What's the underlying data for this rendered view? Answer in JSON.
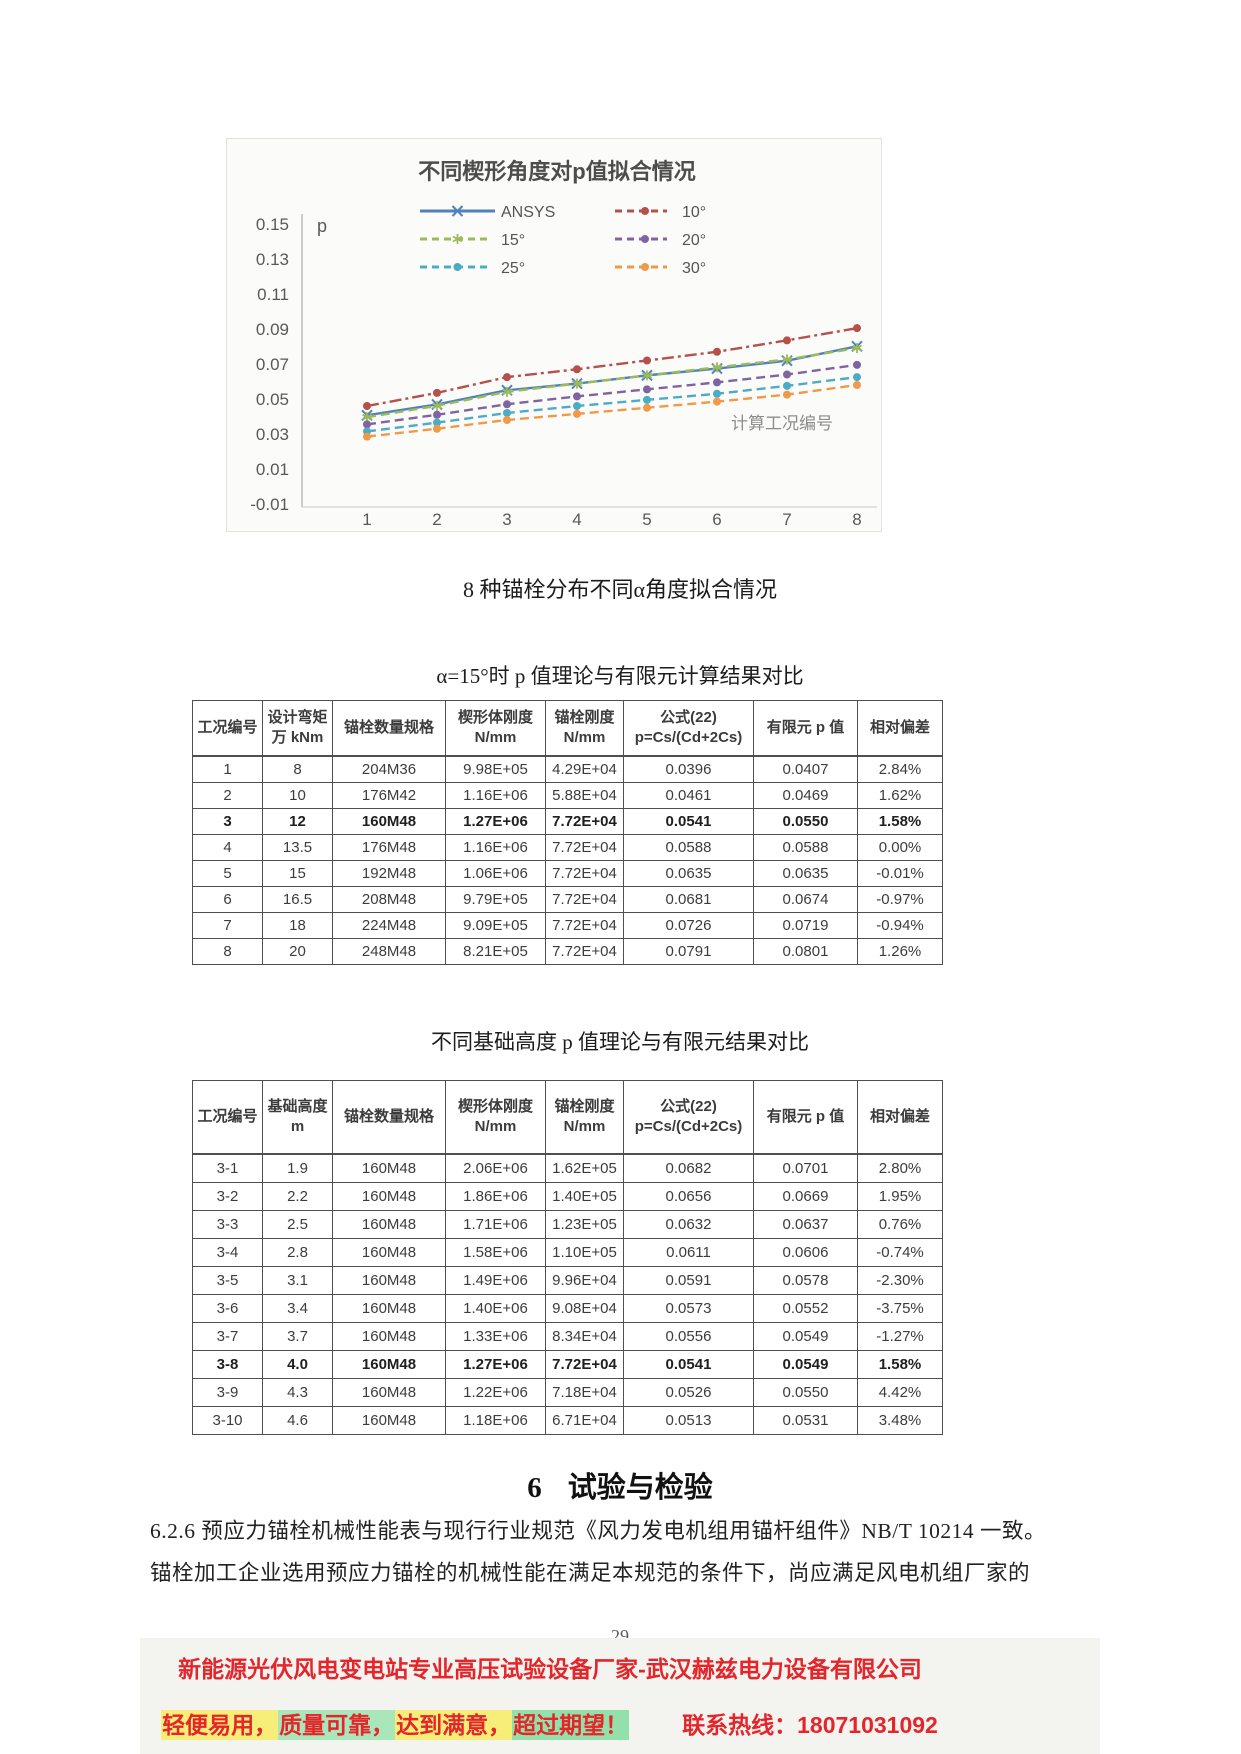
{
  "page": {
    "page_number": "29"
  },
  "chart_data": {
    "type": "line",
    "title": "不同楔形角度对p值拟合情况",
    "xlabel": "计算工况编号",
    "ylabel": "p",
    "x": [
      1,
      2,
      3,
      4,
      5,
      6,
      7,
      8
    ],
    "ylim": [
      -0.01,
      0.15
    ],
    "yticks": [
      0.15,
      0.13,
      0.11,
      0.09,
      0.07,
      0.05,
      0.03,
      0.01,
      -0.01
    ],
    "grid": false,
    "legend_position": "top",
    "series": [
      {
        "name": "ANSYS",
        "color": "#4f81bd",
        "style": "solid",
        "marker": "x",
        "values": [
          0.0407,
          0.0469,
          0.055,
          0.0588,
          0.0635,
          0.0674,
          0.0719,
          0.0801
        ]
      },
      {
        "name": "10°",
        "color": "#b6504c",
        "style": "dashdot",
        "marker": "circle",
        "values": [
          0.046,
          0.0535,
          0.0625,
          0.067,
          0.072,
          0.077,
          0.0835,
          0.0905
        ]
      },
      {
        "name": "15°",
        "color": "#9bbb59",
        "style": "dashed",
        "marker": "star",
        "values": [
          0.0396,
          0.0461,
          0.0541,
          0.0588,
          0.0635,
          0.0681,
          0.0726,
          0.0791
        ]
      },
      {
        "name": "20°",
        "color": "#8064a2",
        "style": "dashed",
        "marker": "circle",
        "values": [
          0.0355,
          0.041,
          0.047,
          0.0515,
          0.0555,
          0.0595,
          0.064,
          0.0695
        ]
      },
      {
        "name": "25°",
        "color": "#4bacc6",
        "style": "dashed",
        "marker": "circle",
        "values": [
          0.0315,
          0.0365,
          0.042,
          0.046,
          0.0495,
          0.053,
          0.0575,
          0.0625
        ]
      },
      {
        "name": "30°",
        "color": "#f09a49",
        "style": "dashed",
        "marker": "circle",
        "values": [
          0.0285,
          0.033,
          0.038,
          0.0415,
          0.045,
          0.0485,
          0.0525,
          0.058
        ]
      }
    ]
  },
  "captions": {
    "figure_caption": "8 种锚栓分布不同α角度拟合情况",
    "table1_title": "α=15°时  p 值理论与有限元计算结果对比",
    "table2_title": "不同基础高度  p 值理论与有限元结果对比"
  },
  "table1": {
    "headers": [
      [
        "工况编号"
      ],
      [
        "设计弯矩",
        "万 kNm"
      ],
      [
        "锚栓数量规格"
      ],
      [
        "楔形体刚度",
        "N/mm"
      ],
      [
        "锚栓刚度",
        "N/mm"
      ],
      [
        "公式(22)",
        "p=Cs/(Cd+2Cs)"
      ],
      [
        "有限元 p 值"
      ],
      [
        "相对偏差"
      ]
    ],
    "bold_row_index": 2,
    "rows": [
      [
        "1",
        "8",
        "204M36",
        "9.98E+05",
        "4.29E+04",
        "0.0396",
        "0.0407",
        "2.84%"
      ],
      [
        "2",
        "10",
        "176M42",
        "1.16E+06",
        "5.88E+04",
        "0.0461",
        "0.0469",
        "1.62%"
      ],
      [
        "3",
        "12",
        "160M48",
        "1.27E+06",
        "7.72E+04",
        "0.0541",
        "0.0550",
        "1.58%"
      ],
      [
        "4",
        "13.5",
        "176M48",
        "1.16E+06",
        "7.72E+04",
        "0.0588",
        "0.0588",
        "0.00%"
      ],
      [
        "5",
        "15",
        "192M48",
        "1.06E+06",
        "7.72E+04",
        "0.0635",
        "0.0635",
        "-0.01%"
      ],
      [
        "6",
        "16.5",
        "208M48",
        "9.79E+05",
        "7.72E+04",
        "0.0681",
        "0.0674",
        "-0.97%"
      ],
      [
        "7",
        "18",
        "224M48",
        "9.09E+05",
        "7.72E+04",
        "0.0726",
        "0.0719",
        "-0.94%"
      ],
      [
        "8",
        "20",
        "248M48",
        "8.21E+05",
        "7.72E+04",
        "0.0791",
        "0.0801",
        "1.26%"
      ]
    ]
  },
  "table2": {
    "headers": [
      [
        "工况编号"
      ],
      [
        "基础高度",
        "m"
      ],
      [
        "锚栓数量规格"
      ],
      [
        "楔形体刚度",
        "N/mm"
      ],
      [
        "锚栓刚度",
        "N/mm"
      ],
      [
        "公式(22)",
        "p=Cs/(Cd+2Cs)"
      ],
      [
        "有限元 p 值"
      ],
      [
        "相对偏差"
      ]
    ],
    "bold_row_index": 7,
    "rows": [
      [
        "3-1",
        "1.9",
        "160M48",
        "2.06E+06",
        "1.62E+05",
        "0.0682",
        "0.0701",
        "2.80%"
      ],
      [
        "3-2",
        "2.2",
        "160M48",
        "1.86E+06",
        "1.40E+05",
        "0.0656",
        "0.0669",
        "1.95%"
      ],
      [
        "3-3",
        "2.5",
        "160M48",
        "1.71E+06",
        "1.23E+05",
        "0.0632",
        "0.0637",
        "0.76%"
      ],
      [
        "3-4",
        "2.8",
        "160M48",
        "1.58E+06",
        "1.10E+05",
        "0.0611",
        "0.0606",
        "-0.74%"
      ],
      [
        "3-5",
        "3.1",
        "160M48",
        "1.49E+06",
        "9.96E+04",
        "0.0591",
        "0.0578",
        "-2.30%"
      ],
      [
        "3-6",
        "3.4",
        "160M48",
        "1.40E+06",
        "9.08E+04",
        "0.0573",
        "0.0552",
        "-3.75%"
      ],
      [
        "3-7",
        "3.7",
        "160M48",
        "1.33E+06",
        "8.34E+04",
        "0.0556",
        "0.0549",
        "-1.27%"
      ],
      [
        "3-8",
        "4.0",
        "160M48",
        "1.27E+06",
        "7.72E+04",
        "0.0541",
        "0.0549",
        "1.58%"
      ],
      [
        "3-9",
        "4.3",
        "160M48",
        "1.22E+06",
        "7.18E+04",
        "0.0526",
        "0.0550",
        "4.42%"
      ],
      [
        "3-10",
        "4.6",
        "160M48",
        "1.18E+06",
        "6.71E+04",
        "0.0513",
        "0.0531",
        "3.48%"
      ]
    ]
  },
  "section": {
    "heading_number": "6",
    "heading_text": "试验与检验",
    "paragraph_line1": "6.2.6 预应力锚栓机械性能表与现行行业规范《风力发电机组用锚杆组件》NB/T 10214 一致。",
    "paragraph_line2": "锚栓加工企业选用预应力锚栓的机械性能在满足本规范的条件下，尚应满足风电机组厂家的"
  },
  "footer": {
    "line1": "新能源光伏风电变电站专业高压试验设备厂家-武汉赫兹电力设备有限公司",
    "slogan_segments": [
      {
        "text": "轻便易用，",
        "highlight": "#f6ee79"
      },
      {
        "text": "质量可靠，",
        "highlight": "#a9e7bb"
      },
      {
        "text": "达到满意，",
        "highlight": "#f6ee79"
      },
      {
        "text": "超过期望！",
        "highlight": "#93e0ab"
      }
    ],
    "contact": "联系热线：18071031092",
    "text_color": "#e4252a"
  }
}
